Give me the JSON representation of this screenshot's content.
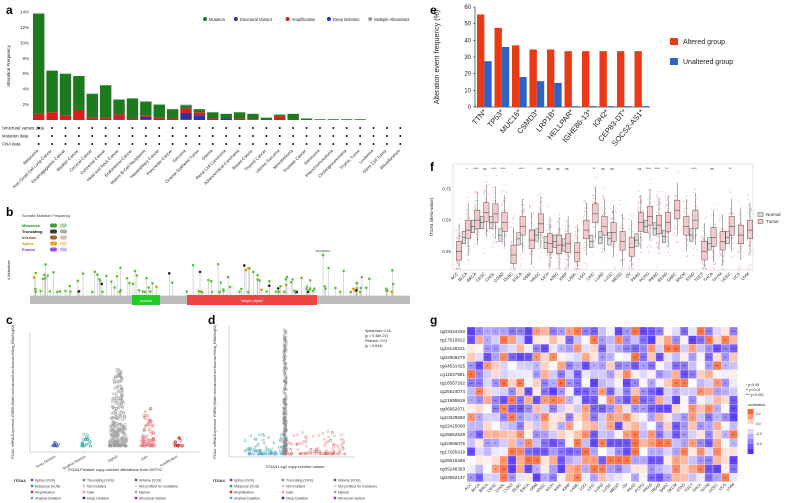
{
  "panels": {
    "a": {
      "label": "a",
      "legend": [
        "Mutation",
        "Structural Variant",
        "Amplification",
        "Deep Deletion",
        "Multiple Alterations"
      ],
      "legend_colors": [
        "#1e7a1e",
        "#3b2c8f",
        "#d62020",
        "#2233bb",
        "#999999"
      ],
      "ylabel": "Alteration Frequency",
      "row_labels": [
        "Structural variant data",
        "Mutation data",
        "CNA data"
      ]
    },
    "b": {
      "label": "b",
      "legend_title": "Somatic Mutation Frequency",
      "legend_items": [
        "Missense",
        "Truncating",
        "Inframe",
        "Splice",
        "Fusion"
      ],
      "legend_colors": [
        "#1a8a1a",
        "#111111",
        "#8b4513",
        "#d69a00",
        "#8a2be2"
      ],
      "ylabel": "# Mutations",
      "domains": [
        "DOMAIN",
        "Integrin_alpha2"
      ],
      "domain_colors": [
        "#22cc22",
        "#ee4444"
      ],
      "annotation": "R1044W/G"
    },
    "c": {
      "label": "c",
      "ylabel": "ITGA4: mRNA Expression, RSEM (Batch normalized from Illumina HiSeq_RNASeqV2)",
      "xlabel": "ITGA4   Putative copy-number alterations from GISTIC",
      "legend_title": "ITGA4",
      "legend_items": [
        "Splice (VUS)",
        "Missense (VUS)",
        "Amplification",
        "Shallow Deletion",
        "Truncating (VUS)",
        "Not mutated",
        "Gain",
        "Deep Deletion",
        "Inframe (VUS)",
        "Not profiled for mutations",
        "Diploid",
        "Structural Variant"
      ]
    },
    "d": {
      "label": "d",
      "ylabel": "ITGA4: mRNA Expression, RSEM (Batch normalized from Illumina HiSeq_RNASeqV2)",
      "xlabel": "ITGA4   Log2 copy-number values",
      "stats": [
        "Spearman: 0.18",
        "(p = 9.46e-22)",
        "Pearson: 0.01",
        "(p = 0.644)"
      ],
      "legend_title": "ITGA4",
      "legend_items": [
        "Splice (VUS)",
        "Missense (VUS)",
        "Amplification",
        "Shallow Deletion",
        "Truncating (VUS)",
        "Not mutated",
        "Gain",
        "Deep Deletion",
        "Inframe (VUS)",
        "Not profiled for mutations",
        "Diploid",
        "Structural Variant"
      ]
    },
    "e": {
      "label": "e",
      "ylabel": "Alteration event frequency (%)",
      "legend": [
        "Altered group",
        "Unaltered group"
      ],
      "legend_colors": [
        "#ea3a14",
        "#2f62c9"
      ]
    },
    "f": {
      "label": "f",
      "ylabel": "ITGA4 (Beta-value)",
      "legend": [
        "Normal",
        "Tumor"
      ]
    },
    "g": {
      "label": "g",
      "probes": [
        "cg03444340",
        "cg17510622",
        "cg18149221",
        "cg02909279",
        "cg04531425",
        "cg11947981",
        "cg18357262",
        "cg25524074",
        "cg21995919",
        "cg06952671",
        "cg10329590",
        "cg22415600",
        "cg25652529",
        "cg10665075",
        "cg17265419",
        "cg25515266",
        "cg05246303",
        "cg02552137"
      ],
      "legend_notes": [
        "* p<0.05",
        "** p<0.01",
        "*** p<0.001"
      ],
      "legend_title": "correlation",
      "legend_ticks": [
        "0.2",
        "0.0",
        "-0.2",
        "-0.4"
      ]
    }
  },
  "chart_data": [
    {
      "type": "bar",
      "title": "",
      "ylabel": "Alteration Frequency",
      "ylim": [
        0,
        14
      ],
      "yticks": [
        "2%",
        "4%",
        "6%",
        "8%",
        "10%",
        "12%",
        "14%"
      ],
      "categories": [
        "Melanoma",
        "Non-Small Cell Lung Cancer",
        "Esophagogastric Cancer",
        "Bladder Cancer",
        "Cervical Cancer",
        "Colorectal Cancer",
        "Head and Neck Cancer",
        "Endometrial Cancer",
        "Mature B-Cell Neoplasms",
        "Hepatobiliary Cancer",
        "Pancreatic Cancer",
        "Sarcoma",
        "Ovarian Epithelial Tumor",
        "Glioma",
        "Renal Cell Carcinoma",
        "Adrenocortical Carcinoma",
        "Breast Cancer",
        "Thyroid Cancer",
        "Uterine Sarcoma",
        "Mesothelioma",
        "Prostate Cancer",
        "Seminoma",
        "Pheochromocytoma",
        "Cholangiocarcinoma",
        "Thymic Tumor",
        "Leukemia",
        "Germ Cell Tumor",
        "Miscellaneous"
      ],
      "series": [
        {
          "name": "Mutation",
          "values": [
            13.0,
            5.4,
            5.4,
            4.4,
            3.1,
            4.2,
            1.9,
            2.6,
            1.8,
            1.7,
            1.2,
            0.4,
            0.4,
            0.8,
            0.6,
            0.8,
            0.7,
            0.3,
            0.2,
            0.8,
            0.2,
            0.1,
            0.1,
            0.1,
            0.1,
            0.0,
            0.0,
            0.0
          ]
        },
        {
          "name": "Amplification",
          "values": [
            0.8,
            1.0,
            0.6,
            1.3,
            0.3,
            0.3,
            0.6,
            0.2,
            0.2,
            0.3,
            0.2,
            0.6,
            0.4,
            0.2,
            0.0,
            0.2,
            0.1,
            0.0,
            0.5,
            0.0,
            0.0,
            0.0,
            0.0,
            0.0,
            0.0,
            0.0,
            0.0,
            0.0
          ]
        },
        {
          "name": "Deep Deletion",
          "values": [
            0.0,
            0.0,
            0.0,
            0.0,
            0.0,
            0.0,
            0.1,
            0.0,
            0.1,
            0.0,
            0.0,
            0.1,
            0.6,
            0.0,
            0.2,
            0.0,
            0.0,
            0.0,
            0.0,
            0.0,
            0.0,
            0.0,
            0.0,
            0.0,
            0.0,
            0.0,
            0.0,
            0.0
          ]
        },
        {
          "name": "Structural Variant",
          "values": [
            0.0,
            0.0,
            0.0,
            0.0,
            0.0,
            0.0,
            0.0,
            0.0,
            0.3,
            0.0,
            0.0,
            0.8,
            0.0,
            0.0,
            0.0,
            0.0,
            0.0,
            0.0,
            0.0,
            0.0,
            0.0,
            0.0,
            0.0,
            0.0,
            0.0,
            0.0,
            0.0,
            0.0
          ]
        },
        {
          "name": "Multiple Alterations",
          "values": [
            0.0,
            0.0,
            0.0,
            0.0,
            0.0,
            0.0,
            0.1,
            0.0,
            0.0,
            0.0,
            0.0,
            0.1,
            0.0,
            0.0,
            0.0,
            0.0,
            0.0,
            0.0,
            0.0,
            0.0,
            0.0,
            0.0,
            0.0,
            0.0,
            0.0,
            0.0,
            0.0,
            0.0
          ]
        }
      ]
    },
    {
      "type": "bar",
      "title": "",
      "ylabel": "Alteration event frequency (%)",
      "ylim": [
        0,
        60
      ],
      "yticks": [
        "0",
        "10",
        "20",
        "30",
        "40",
        "50",
        "60"
      ],
      "categories": [
        "TTN*",
        "TP53*",
        "MUC16*",
        "CSMD3*",
        "LRP1B*",
        "HELLPAR*",
        "IGHE86-13*",
        "IOH2*",
        "CEP83-DT*",
        "SOCS2-AS1*"
      ],
      "series": [
        {
          "name": "Altered group",
          "values": [
            55.5,
            47.5,
            37.0,
            34.5,
            34.5,
            33.5,
            33.5,
            33.5,
            33.5,
            33.5
          ]
        },
        {
          "name": "Unaltered group",
          "values": [
            27.5,
            36.0,
            18.0,
            15.5,
            14.5,
            0.5,
            0.5,
            0.5,
            0.5,
            0.5
          ]
        }
      ]
    },
    {
      "type": "box",
      "title": "",
      "ylabel": "ITGA4 (Beta-value)",
      "yticks": [
        "0.25",
        "0.50",
        "0.75"
      ],
      "ylim": [
        0.1,
        0.95
      ],
      "categories": [
        "ACC",
        "BLCA",
        "BRCA",
        "CESC",
        "CHOL",
        "COAD",
        "DLBC",
        "ESCA",
        "GBM",
        "HNSC",
        "KICH",
        "KIRC",
        "KIRP",
        "LAML",
        "LGG",
        "LIHC",
        "LUAD",
        "LUSC",
        "MESO",
        "OV",
        "PAAD",
        "PCPG",
        "PRAD",
        "READ",
        "SARC",
        "SKCM",
        "STAD",
        "TGCT",
        "THCA",
        "THYM",
        "UCEC",
        "UCS",
        "UVM"
      ],
      "significance": [
        "",
        "*",
        "****",
        "ns",
        "****",
        "****",
        "",
        "****",
        "",
        "****",
        "ns",
        "ns",
        "ns",
        "",
        "",
        "**",
        "ns",
        "ns",
        "",
        "",
        "ns",
        "****",
        "****",
        "**",
        "",
        "",
        "****",
        "",
        "ns",
        "",
        "**",
        "",
        ""
      ],
      "series": [
        {
          "name": "Normal",
          "medians": [
            null,
            0.36,
            0.45,
            0.48,
            0.48,
            0.38,
            null,
            0.35,
            null,
            0.38,
            0.32,
            0.33,
            0.3,
            null,
            null,
            0.33,
            0.36,
            0.35,
            null,
            null,
            0.34,
            0.45,
            0.43,
            0.37,
            null,
            null,
            0.38,
            null,
            0.31,
            null,
            0.36,
            null,
            null
          ]
        },
        {
          "name": "Tumor",
          "medians": [
            0.25,
            0.42,
            0.5,
            0.56,
            0.55,
            0.48,
            0.22,
            0.45,
            0.34,
            0.47,
            0.31,
            0.3,
            0.31,
            0.24,
            0.42,
            0.55,
            0.45,
            0.4,
            0.33,
            0.28,
            0.48,
            0.53,
            0.46,
            0.48,
            0.58,
            0.45,
            0.5,
            0.25,
            0.36,
            0.33,
            0.45,
            0.38,
            0.42
          ]
        }
      ]
    }
  ]
}
